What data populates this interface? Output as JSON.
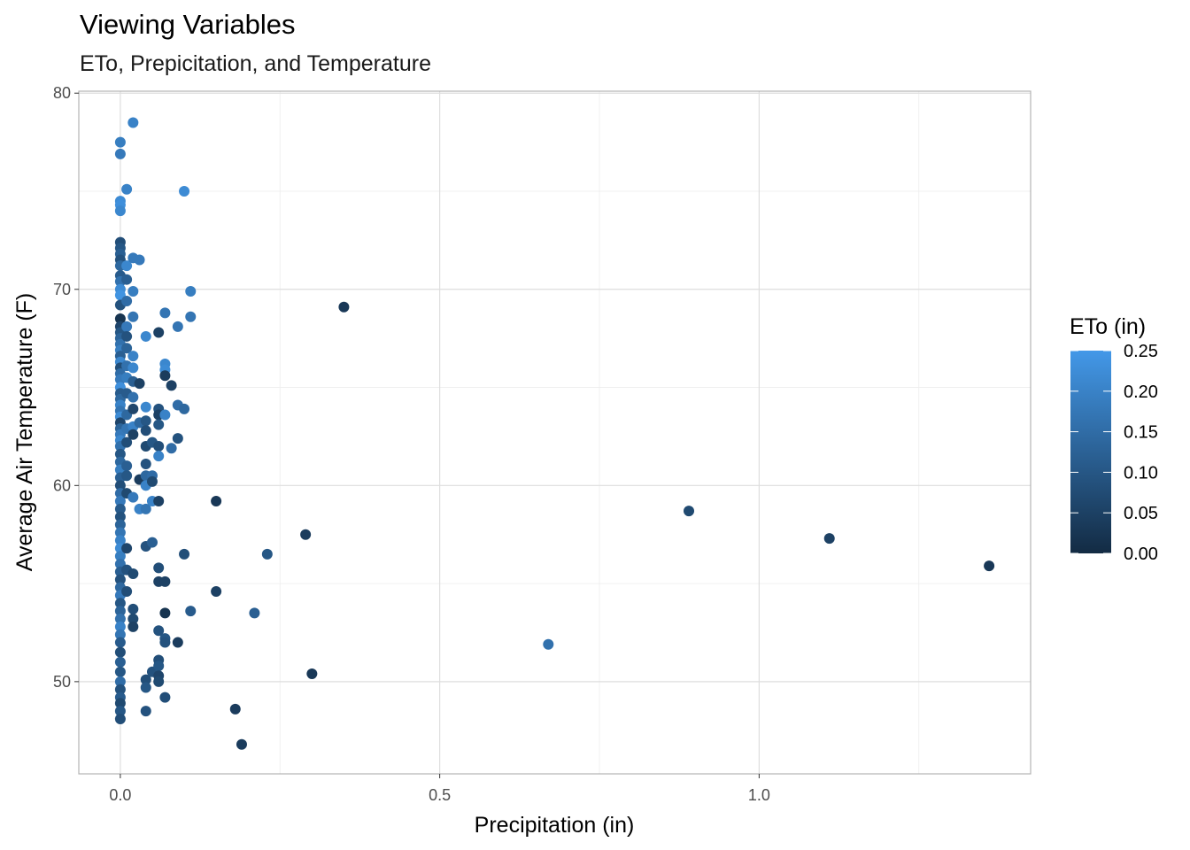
{
  "chart_data": {
    "type": "scatter",
    "title": "Viewing Variables",
    "subtitle": "ETo, Prepicitation, and Temperature",
    "xlabel": "Precipitation (in)",
    "ylabel": "Average Air Temperature (F)",
    "xlim": [
      -0.065,
      1.425
    ],
    "ylim": [
      45.3,
      80.1
    ],
    "x_ticks": [
      0.0,
      0.5,
      1.0
    ],
    "x_tick_labels": [
      "0.0",
      "0.5",
      "1.0"
    ],
    "y_ticks": [
      50,
      60,
      70,
      80
    ],
    "y_tick_labels": [
      "50",
      "60",
      "70",
      "80"
    ],
    "grid": true,
    "legend": {
      "title": "ETo (in)",
      "placement": "right",
      "ticks": [
        0.0,
        0.05,
        0.1,
        0.15,
        0.2,
        0.25
      ],
      "tick_labels": [
        "0.00",
        "0.05",
        "0.10",
        "0.15",
        "0.20",
        "0.25"
      ],
      "range": [
        0.0,
        0.25
      ],
      "low_color": "#132B43",
      "high_color": "#4398E8"
    },
    "columns": [
      "precip_in",
      "avg_air_temp_F",
      "eto_in"
    ],
    "points": [
      [
        0.02,
        78.5,
        0.2
      ],
      [
        0,
        77.5,
        0.19
      ],
      [
        0,
        76.9,
        0.18
      ],
      [
        0.01,
        75.1,
        0.2
      ],
      [
        0.1,
        75.0,
        0.22
      ],
      [
        0,
        74.5,
        0.22
      ],
      [
        0,
        74.3,
        0.23
      ],
      [
        0,
        74.0,
        0.21
      ],
      [
        0,
        72.4,
        0.08
      ],
      [
        0,
        72.1,
        0.1
      ],
      [
        0,
        71.8,
        0.12
      ],
      [
        0,
        71.5,
        0.09
      ],
      [
        0,
        71.2,
        0.14
      ],
      [
        0,
        70.7,
        0.11
      ],
      [
        0,
        70.4,
        0.16
      ],
      [
        0,
        70.0,
        0.22
      ],
      [
        0,
        69.7,
        0.24
      ],
      [
        0,
        69.2,
        0.09
      ],
      [
        0,
        68.5,
        0.02
      ],
      [
        0,
        68.1,
        0.06
      ],
      [
        0,
        67.8,
        0.1
      ],
      [
        0,
        67.5,
        0.13
      ],
      [
        0,
        67.2,
        0.16
      ],
      [
        0,
        66.9,
        0.19
      ],
      [
        0,
        66.6,
        0.12
      ],
      [
        0,
        66.3,
        0.21
      ],
      [
        0,
        66.0,
        0.08
      ],
      [
        0,
        65.7,
        0.15
      ],
      [
        0,
        65.4,
        0.18
      ],
      [
        0,
        65.0,
        0.23
      ],
      [
        0,
        64.7,
        0.11
      ],
      [
        0,
        64.4,
        0.14
      ],
      [
        0,
        64.1,
        0.2
      ],
      [
        0,
        63.8,
        0.17
      ],
      [
        0,
        63.5,
        0.22
      ],
      [
        0,
        63.2,
        0.06
      ],
      [
        0,
        62.9,
        0.13
      ],
      [
        0,
        62.6,
        0.18
      ],
      [
        0,
        62.3,
        0.21
      ],
      [
        0,
        62.0,
        0.16
      ],
      [
        0,
        61.6,
        0.1
      ],
      [
        0,
        61.2,
        0.14
      ],
      [
        0,
        60.8,
        0.19
      ],
      [
        0,
        60.4,
        0.12
      ],
      [
        0,
        60.0,
        0.08
      ],
      [
        0,
        59.6,
        0.15
      ],
      [
        0,
        59.2,
        0.18
      ],
      [
        0,
        58.8,
        0.11
      ],
      [
        0,
        58.4,
        0.09
      ],
      [
        0,
        58.0,
        0.13
      ],
      [
        0,
        57.6,
        0.17
      ],
      [
        0,
        57.2,
        0.2
      ],
      [
        0,
        56.8,
        0.22
      ],
      [
        0,
        56.4,
        0.19
      ],
      [
        0,
        56.0,
        0.16
      ],
      [
        0,
        55.6,
        0.12
      ],
      [
        0,
        55.2,
        0.09
      ],
      [
        0,
        54.8,
        0.14
      ],
      [
        0,
        54.4,
        0.18
      ],
      [
        0,
        54.0,
        0.1
      ],
      [
        0,
        53.6,
        0.13
      ],
      [
        0,
        53.2,
        0.16
      ],
      [
        0,
        52.8,
        0.2
      ],
      [
        0,
        52.4,
        0.17
      ],
      [
        0,
        52.0,
        0.11
      ],
      [
        0,
        51.5,
        0.08
      ],
      [
        0,
        51.0,
        0.12
      ],
      [
        0,
        50.5,
        0.1
      ],
      [
        0,
        50.0,
        0.15
      ],
      [
        0,
        49.6,
        0.09
      ],
      [
        0,
        49.2,
        0.11
      ],
      [
        0,
        48.9,
        0.07
      ],
      [
        0,
        48.5,
        0.1
      ],
      [
        0,
        48.1,
        0.08
      ],
      [
        0.01,
        71.2,
        0.21
      ],
      [
        0.01,
        70.5,
        0.12
      ],
      [
        0.01,
        69.4,
        0.15
      ],
      [
        0.01,
        68.1,
        0.18
      ],
      [
        0.01,
        67.6,
        0.09
      ],
      [
        0.01,
        67.0,
        0.13
      ],
      [
        0.01,
        66.1,
        0.16
      ],
      [
        0.01,
        65.5,
        0.19
      ],
      [
        0.01,
        64.7,
        0.11
      ],
      [
        0.01,
        63.6,
        0.14
      ],
      [
        0.01,
        62.9,
        0.17
      ],
      [
        0.01,
        62.2,
        0.08
      ],
      [
        0.01,
        61.0,
        0.12
      ],
      [
        0.01,
        60.5,
        0.1
      ],
      [
        0.01,
        59.6,
        0.07
      ],
      [
        0.01,
        56.8,
        0.06
      ],
      [
        0.01,
        55.7,
        0.09
      ],
      [
        0.01,
        54.6,
        0.08
      ],
      [
        0.02,
        71.6,
        0.18
      ],
      [
        0.02,
        69.9,
        0.19
      ],
      [
        0.02,
        68.6,
        0.17
      ],
      [
        0.02,
        66.6,
        0.2
      ],
      [
        0.02,
        66.0,
        0.21
      ],
      [
        0.02,
        65.3,
        0.12
      ],
      [
        0.02,
        64.5,
        0.16
      ],
      [
        0.02,
        63.9,
        0.06
      ],
      [
        0.02,
        63.0,
        0.2
      ],
      [
        0.02,
        62.6,
        0.05
      ],
      [
        0.02,
        59.4,
        0.18
      ],
      [
        0.02,
        55.5,
        0.07
      ],
      [
        0.02,
        53.7,
        0.08
      ],
      [
        0.02,
        53.2,
        0.07
      ],
      [
        0.02,
        52.8,
        0.05
      ],
      [
        0.03,
        71.5,
        0.18
      ],
      [
        0.03,
        65.2,
        0.05
      ],
      [
        0.03,
        63.2,
        0.14
      ],
      [
        0.03,
        60.3,
        0.04
      ],
      [
        0.03,
        58.8,
        0.2
      ],
      [
        0.04,
        67.6,
        0.21
      ],
      [
        0.04,
        64.0,
        0.21
      ],
      [
        0.04,
        63.3,
        0.1
      ],
      [
        0.04,
        62.8,
        0.08
      ],
      [
        0.04,
        62.0,
        0.07
      ],
      [
        0.04,
        61.1,
        0.09
      ],
      [
        0.04,
        60.5,
        0.14
      ],
      [
        0.04,
        60.0,
        0.2
      ],
      [
        0.04,
        58.8,
        0.17
      ],
      [
        0.04,
        56.9,
        0.09
      ],
      [
        0.04,
        50.1,
        0.08
      ],
      [
        0.04,
        49.7,
        0.1
      ],
      [
        0.04,
        48.5,
        0.09
      ],
      [
        0.05,
        62.2,
        0.1
      ],
      [
        0.05,
        60.5,
        0.15
      ],
      [
        0.05,
        60.2,
        0.07
      ],
      [
        0.05,
        59.2,
        0.2
      ],
      [
        0.05,
        57.1,
        0.12
      ],
      [
        0.05,
        50.5,
        0.09
      ],
      [
        0.06,
        67.8,
        0.05
      ],
      [
        0.06,
        63.9,
        0.09
      ],
      [
        0.06,
        63.6,
        0.05
      ],
      [
        0.06,
        63.1,
        0.1
      ],
      [
        0.06,
        62.0,
        0.08
      ],
      [
        0.06,
        61.5,
        0.2
      ],
      [
        0.06,
        59.2,
        0.05
      ],
      [
        0.06,
        55.8,
        0.08
      ],
      [
        0.06,
        55.1,
        0.05
      ],
      [
        0.06,
        52.6,
        0.09
      ],
      [
        0.06,
        51.1,
        0.08
      ],
      [
        0.06,
        50.8,
        0.1
      ],
      [
        0.06,
        50.3,
        0.06
      ],
      [
        0.06,
        50.0,
        0.07
      ],
      [
        0.07,
        68.8,
        0.17
      ],
      [
        0.07,
        66.2,
        0.21
      ],
      [
        0.07,
        65.9,
        0.22
      ],
      [
        0.07,
        65.6,
        0.04
      ],
      [
        0.07,
        63.6,
        0.2
      ],
      [
        0.07,
        55.1,
        0.05
      ],
      [
        0.07,
        53.5,
        0.02
      ],
      [
        0.07,
        52.2,
        0.1
      ],
      [
        0.07,
        52.0,
        0.09
      ],
      [
        0.07,
        49.2,
        0.08
      ],
      [
        0.08,
        65.1,
        0.05
      ],
      [
        0.08,
        61.9,
        0.15
      ],
      [
        0.09,
        68.1,
        0.17
      ],
      [
        0.09,
        64.1,
        0.15
      ],
      [
        0.09,
        62.4,
        0.09
      ],
      [
        0.09,
        52.0,
        0.04
      ],
      [
        0.1,
        63.9,
        0.14
      ],
      [
        0.1,
        56.5,
        0.08
      ],
      [
        0.11,
        69.9,
        0.19
      ],
      [
        0.11,
        68.6,
        0.17
      ],
      [
        0.11,
        53.6,
        0.11
      ],
      [
        0.15,
        59.2,
        0.03
      ],
      [
        0.15,
        54.6,
        0.05
      ],
      [
        0.18,
        48.6,
        0.04
      ],
      [
        0.19,
        46.8,
        0.04
      ],
      [
        0.21,
        53.5,
        0.12
      ],
      [
        0.23,
        56.5,
        0.1
      ],
      [
        0.29,
        57.5,
        0.04
      ],
      [
        0.3,
        50.4,
        0.03
      ],
      [
        0.35,
        69.1,
        0.03
      ],
      [
        0.67,
        51.9,
        0.16
      ],
      [
        0.89,
        58.7,
        0.07
      ],
      [
        1.11,
        57.3,
        0.05
      ],
      [
        1.36,
        55.9,
        0.03
      ]
    ]
  }
}
